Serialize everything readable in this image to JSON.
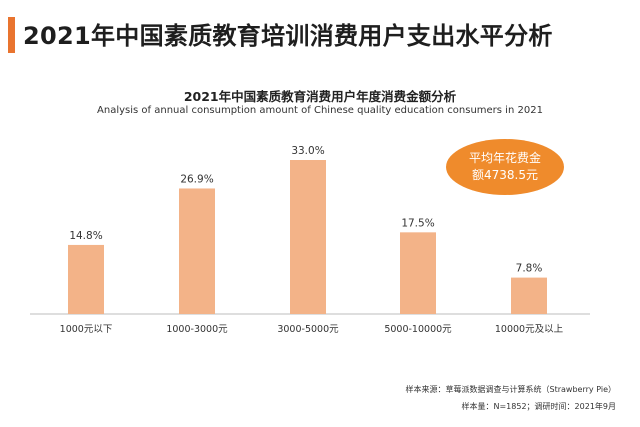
{
  "header": {
    "title": "2021年中国素质教育培训消费用户支出水平分析",
    "accent_color": "#e9742f"
  },
  "badge": {
    "line1": "平均年花费金",
    "line2": "额4738.5元",
    "color": "#ef8b2c"
  },
  "chart_data": {
    "type": "bar",
    "title": "2021年中国素质教育消费用户年度消费金额分析",
    "subtitle": "Analysis of annual consumption amount of Chinese quality education consumers in 2021",
    "categories": [
      "1000元以下",
      "1000-3000元",
      "3000-5000元",
      "5000-10000元",
      "10000元及以上"
    ],
    "values": [
      14.8,
      26.9,
      33.0,
      17.5,
      7.8
    ],
    "value_labels": [
      "14.8%",
      "26.9%",
      "33.0%",
      "17.5%",
      "7.8%"
    ],
    "unit": "%",
    "ylim": [
      0,
      33
    ],
    "bar_color": "#f3b388",
    "grid": false
  },
  "footer": {
    "source": "样本来源：草莓派数据调查与计算系统（Strawberry Pie）",
    "sample": "样本量：N=1852；调研时间：2021年9月"
  }
}
